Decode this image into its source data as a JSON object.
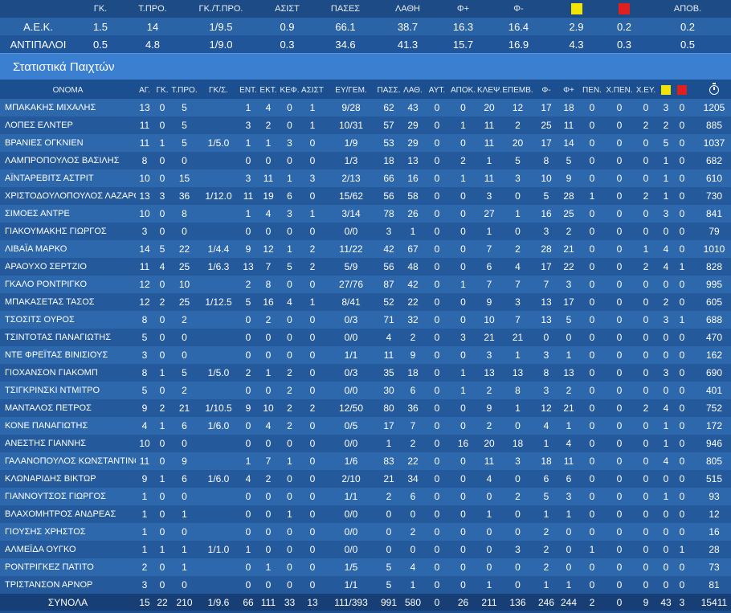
{
  "team_summary": {
    "headers": [
      "",
      "ΓΚ.",
      "Τ.ΠΡΟ.",
      "ΓΚ./Τ.ΠΡΟ.",
      "ΑΣΙΣΤ",
      "ΠΑΣΕΣ",
      "ΛΑΘΗ",
      "Φ+",
      "Φ-",
      "",
      "",
      "ΑΠΟΒ."
    ],
    "card_colors": {
      "yellow": "#f2e600",
      "red": "#e0201f"
    },
    "rows": [
      [
        "Α.Ε.Κ.",
        "1.5",
        "14",
        "1/9.5",
        "0.9",
        "66.1",
        "38.7",
        "16.3",
        "16.4",
        "2.9",
        "0.2",
        "0.2"
      ],
      [
        "ΑΝΤΙΠΑΛΟΙ",
        "0.5",
        "4.8",
        "1/9.0",
        "0.3",
        "34.6",
        "41.3",
        "15.7",
        "16.9",
        "4.3",
        "0.3",
        "0.5"
      ]
    ]
  },
  "section_title": "Στατιστικά Παιχτών",
  "player_stats": {
    "headers": [
      "ΟΝΟΜΑ",
      "ΑΓ.",
      "ΓΚ.",
      "Τ.ΠΡΟ.",
      "ΓΚ/Σ.",
      "ΕΝΤ.",
      "ΕΚΤ.",
      "ΚΕΦ.",
      "ΑΣΙΣΤ",
      "ΕΥ/ΓΕΜ.",
      "ΠΑΣΣ.",
      "ΛΑΘ.",
      "ΑΥΤ.",
      "ΑΠΟΚ.",
      "ΚΛΕΨ.",
      "ΕΠΕΜΒ.",
      "Φ-",
      "Φ+",
      "ΠΕΝ.",
      "Χ.ΠΕΝ.",
      "Χ.ΕΥ.",
      "",
      "",
      ""
    ],
    "rows": [
      [
        "ΜΠΑΚΑΚΗΣ ΜΙΧΑΛΗΣ",
        "13",
        "0",
        "5",
        "",
        "1",
        "4",
        "0",
        "1",
        "9/28",
        "62",
        "43",
        "0",
        "0",
        "20",
        "12",
        "17",
        "18",
        "0",
        "0",
        "0",
        "3",
        "0",
        "1205"
      ],
      [
        "ΛΟΠΕΣ ΕΛΝΤΕΡ",
        "11",
        "0",
        "5",
        "",
        "3",
        "2",
        "0",
        "1",
        "10/31",
        "57",
        "29",
        "0",
        "1",
        "11",
        "2",
        "25",
        "11",
        "0",
        "0",
        "2",
        "2",
        "0",
        "885"
      ],
      [
        "ΒΡΑΝΙΕΣ ΟΓΚΝΙΕΝ",
        "11",
        "1",
        "5",
        "1/5.0",
        "1",
        "1",
        "3",
        "0",
        "1/9",
        "53",
        "29",
        "0",
        "0",
        "11",
        "20",
        "17",
        "14",
        "0",
        "0",
        "0",
        "5",
        "0",
        "1037"
      ],
      [
        "ΛΑΜΠΡΟΠΟΥΛΟΣ ΒΑΣΙΛΗΣ",
        "8",
        "0",
        "0",
        "",
        "0",
        "0",
        "0",
        "0",
        "1/3",
        "18",
        "13",
        "0",
        "2",
        "1",
        "5",
        "8",
        "5",
        "0",
        "0",
        "0",
        "1",
        "0",
        "682"
      ],
      [
        "ΑΪΝΤΑΡΕΒΙΤΣ ΑΣΤΡΙΤ",
        "10",
        "0",
        "15",
        "",
        "3",
        "11",
        "1",
        "3",
        "2/13",
        "66",
        "16",
        "0",
        "1",
        "11",
        "3",
        "10",
        "9",
        "0",
        "0",
        "0",
        "1",
        "0",
        "610"
      ],
      [
        "ΧΡΙΣΤΟΔΟΥΛΟΠΟΥΛΟΣ ΛΑΖΑΡΟΣ",
        "13",
        "3",
        "36",
        "1/12.0",
        "11",
        "19",
        "6",
        "0",
        "15/62",
        "56",
        "58",
        "0",
        "0",
        "3",
        "0",
        "5",
        "28",
        "1",
        "0",
        "2",
        "1",
        "0",
        "730"
      ],
      [
        "ΣΙΜΟΕΣ ΑΝΤΡΕ",
        "10",
        "0",
        "8",
        "",
        "1",
        "4",
        "3",
        "1",
        "3/14",
        "78",
        "26",
        "0",
        "0",
        "27",
        "1",
        "16",
        "25",
        "0",
        "0",
        "0",
        "3",
        "0",
        "841"
      ],
      [
        "ΓΙΑΚΟΥΜΑΚΗΣ ΓΙΩΡΓΟΣ",
        "3",
        "0",
        "0",
        "",
        "0",
        "0",
        "0",
        "0",
        "0/0",
        "3",
        "1",
        "0",
        "0",
        "1",
        "0",
        "3",
        "2",
        "0",
        "0",
        "0",
        "0",
        "0",
        "79"
      ],
      [
        "ΛΙΒΑΪΑ ΜΑΡΚΟ",
        "14",
        "5",
        "22",
        "1/4.4",
        "9",
        "12",
        "1",
        "2",
        "11/22",
        "42",
        "67",
        "0",
        "0",
        "7",
        "2",
        "28",
        "21",
        "0",
        "0",
        "1",
        "4",
        "0",
        "1010"
      ],
      [
        "ΑΡΑΟΥΧΟ ΣΕΡΤΖΙΟ",
        "11",
        "4",
        "25",
        "1/6.3",
        "13",
        "7",
        "5",
        "2",
        "5/9",
        "56",
        "48",
        "0",
        "0",
        "6",
        "4",
        "17",
        "22",
        "0",
        "0",
        "2",
        "4",
        "1",
        "828"
      ],
      [
        "ΓΚΑΛΟ ΡΟΝΤΡΙΓΚΟ",
        "12",
        "0",
        "10",
        "",
        "2",
        "8",
        "0",
        "0",
        "27/76",
        "87",
        "42",
        "0",
        "1",
        "7",
        "7",
        "7",
        "3",
        "0",
        "0",
        "0",
        "0",
        "0",
        "995"
      ],
      [
        "ΜΠΑΚΑΣΕΤΑΣ ΤΑΣΟΣ",
        "12",
        "2",
        "25",
        "1/12.5",
        "5",
        "16",
        "4",
        "1",
        "8/41",
        "52",
        "22",
        "0",
        "0",
        "9",
        "3",
        "13",
        "17",
        "0",
        "0",
        "0",
        "2",
        "0",
        "605"
      ],
      [
        "ΤΣΟΣΙΤΣ ΟΥΡΟΣ",
        "8",
        "0",
        "2",
        "",
        "0",
        "2",
        "0",
        "0",
        "0/3",
        "71",
        "32",
        "0",
        "0",
        "10",
        "7",
        "13",
        "5",
        "0",
        "0",
        "0",
        "3",
        "1",
        "688"
      ],
      [
        "ΤΣΙΝΤΟΤΑΣ ΠΑΝΑΓΙΩΤΗΣ",
        "5",
        "0",
        "0",
        "",
        "0",
        "0",
        "0",
        "0",
        "0/0",
        "4",
        "2",
        "0",
        "3",
        "21",
        "21",
        "0",
        "0",
        "0",
        "0",
        "0",
        "0",
        "0",
        "470"
      ],
      [
        "ΝΤΕ ΦΡΕΪΤΑΣ ΒΙΝΙΣΙΟΥΣ",
        "3",
        "0",
        "0",
        "",
        "0",
        "0",
        "0",
        "0",
        "1/1",
        "11",
        "9",
        "0",
        "0",
        "3",
        "1",
        "3",
        "1",
        "0",
        "0",
        "0",
        "0",
        "0",
        "162"
      ],
      [
        "ΓΙΟΧΑΝΣΟΝ ΓΙΑΚΟΜΠ",
        "8",
        "1",
        "5",
        "1/5.0",
        "2",
        "1",
        "2",
        "0",
        "0/3",
        "35",
        "18",
        "0",
        "1",
        "13",
        "13",
        "8",
        "13",
        "0",
        "0",
        "0",
        "3",
        "0",
        "690"
      ],
      [
        "ΤΣΙΓΚΡΙΝΣΚΙ ΝΤΜΙΤΡΟ",
        "5",
        "0",
        "2",
        "",
        "0",
        "0",
        "2",
        "0",
        "0/0",
        "30",
        "6",
        "0",
        "1",
        "2",
        "8",
        "3",
        "2",
        "0",
        "0",
        "0",
        "0",
        "0",
        "401"
      ],
      [
        "ΜΑΝΤΑΛΟΣ ΠΕΤΡΟΣ",
        "9",
        "2",
        "21",
        "1/10.5",
        "9",
        "10",
        "2",
        "2",
        "12/50",
        "80",
        "36",
        "0",
        "0",
        "9",
        "1",
        "12",
        "21",
        "0",
        "0",
        "2",
        "4",
        "0",
        "752"
      ],
      [
        "ΚΟΝΕ ΠΑΝΑΓΙΩΤΗΣ",
        "4",
        "1",
        "6",
        "1/6.0",
        "0",
        "4",
        "2",
        "0",
        "0/5",
        "17",
        "7",
        "0",
        "0",
        "2",
        "0",
        "4",
        "1",
        "0",
        "0",
        "0",
        "1",
        "0",
        "172"
      ],
      [
        "ΑΝΕΣΤΗΣ ΓΙΑΝΝΗΣ",
        "10",
        "0",
        "0",
        "",
        "0",
        "0",
        "0",
        "0",
        "0/0",
        "1",
        "2",
        "0",
        "16",
        "20",
        "18",
        "1",
        "4",
        "0",
        "0",
        "0",
        "1",
        "0",
        "946"
      ],
      [
        "ΓΑΛΑΝΟΠΟΥΛΟΣ ΚΩΝΣΤΑΝΤΙΝΟΣ",
        "11",
        "0",
        "9",
        "",
        "1",
        "7",
        "1",
        "0",
        "1/6",
        "83",
        "22",
        "0",
        "0",
        "11",
        "3",
        "18",
        "11",
        "0",
        "0",
        "0",
        "4",
        "0",
        "805"
      ],
      [
        "ΚΛΩΝΑΡΙΔΗΣ ΒΙΚΤΩΡ",
        "9",
        "1",
        "6",
        "1/6.0",
        "4",
        "2",
        "0",
        "0",
        "2/10",
        "21",
        "34",
        "0",
        "0",
        "4",
        "0",
        "6",
        "6",
        "0",
        "0",
        "0",
        "0",
        "0",
        "515"
      ],
      [
        "ΓΙΑΝΝΟΥΤΣΟΣ ΓΙΩΡΓΟΣ",
        "1",
        "0",
        "0",
        "",
        "0",
        "0",
        "0",
        "0",
        "1/1",
        "2",
        "6",
        "0",
        "0",
        "0",
        "2",
        "5",
        "3",
        "0",
        "0",
        "0",
        "1",
        "0",
        "93"
      ],
      [
        "ΒΛΑΧΟΜΗΤΡΟΣ ΑΝΔΡΕΑΣ",
        "1",
        "0",
        "1",
        "",
        "0",
        "0",
        "1",
        "0",
        "0/0",
        "0",
        "0",
        "0",
        "0",
        "1",
        "0",
        "1",
        "1",
        "0",
        "0",
        "0",
        "0",
        "0",
        "12"
      ],
      [
        "ΓΙΟΥΣΗΣ ΧΡΗΣΤΟΣ",
        "1",
        "0",
        "0",
        "",
        "0",
        "0",
        "0",
        "0",
        "0/0",
        "0",
        "2",
        "0",
        "0",
        "0",
        "0",
        "2",
        "0",
        "0",
        "0",
        "0",
        "0",
        "0",
        "16"
      ],
      [
        "ΑΛΜΕΪΔΑ ΟΥΓΚΟ",
        "1",
        "1",
        "1",
        "1/1.0",
        "1",
        "0",
        "0",
        "0",
        "0/0",
        "0",
        "0",
        "0",
        "0",
        "0",
        "3",
        "2",
        "0",
        "1",
        "0",
        "0",
        "0",
        "1",
        "28"
      ],
      [
        "ΡΟΝΤΡΙΓΚΕΖ ΠΑΤΙΤΟ",
        "2",
        "0",
        "1",
        "",
        "0",
        "1",
        "0",
        "0",
        "1/5",
        "5",
        "4",
        "0",
        "0",
        "0",
        "0",
        "2",
        "0",
        "0",
        "0",
        "0",
        "0",
        "0",
        "73"
      ],
      [
        "ΤΡΙΣΤΑΝΣΟΝ ΑΡΝΟΡ",
        "3",
        "0",
        "0",
        "",
        "0",
        "0",
        "0",
        "0",
        "1/1",
        "5",
        "1",
        "0",
        "0",
        "1",
        "0",
        "1",
        "1",
        "0",
        "0",
        "0",
        "0",
        "0",
        "81"
      ]
    ],
    "totals": [
      "ΣΥΝΟΛΑ",
      "15",
      "22",
      "210",
      "1/9.6",
      "66",
      "111",
      "33",
      "13",
      "111/393",
      "991",
      "580",
      "0",
      "26",
      "211",
      "136",
      "246",
      "244",
      "2",
      "0",
      "9",
      "43",
      "3",
      "15411"
    ]
  }
}
